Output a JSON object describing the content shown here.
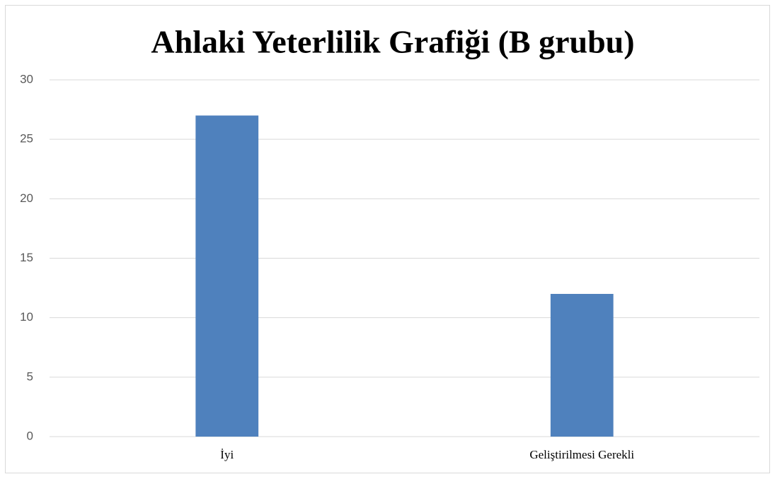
{
  "chart_data": {
    "type": "bar",
    "title": "Ahlaki Yeterlilik Grafiği (B grubu)",
    "categories": [
      "İyi",
      "Geliştirilmesi Gerekli"
    ],
    "values": [
      27,
      12
    ],
    "color": "#4f81bd",
    "ylim": [
      0,
      30
    ],
    "yticks": [
      0,
      5,
      10,
      15,
      20,
      25,
      30
    ],
    "grid": true
  }
}
